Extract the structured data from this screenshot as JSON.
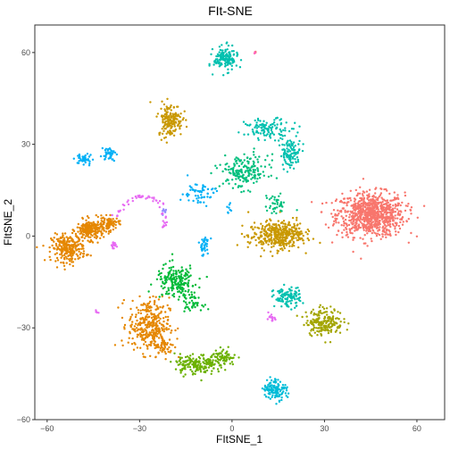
{
  "chart_data": {
    "type": "scatter",
    "title": "FIt-SNE",
    "xlabel": "FItSNE_1",
    "ylabel": "FItSNE_2",
    "xlim": [
      -64,
      69
    ],
    "ylim": [
      -60,
      69
    ],
    "xticks": [
      -60,
      -30,
      0,
      30,
      60
    ],
    "yticks": [
      -60,
      -30,
      0,
      30,
      60
    ],
    "grid": false,
    "legend": "none",
    "clusters": [
      {
        "color": "#F8766D",
        "center": [
          45,
          7
        ],
        "spread": [
          10,
          6.5
        ],
        "n": 850
      },
      {
        "color": "#F8766D",
        "center": [
          7.5,
          60
        ],
        "spread": [
          0.6,
          0.4
        ],
        "n": 3
      },
      {
        "color": "#E58700",
        "center": [
          -53,
          -4
        ],
        "spread": [
          5,
          4
        ],
        "n": 260
      },
      {
        "color": "#E58700",
        "center": [
          -46,
          2
        ],
        "spread": [
          4,
          3
        ],
        "n": 220
      },
      {
        "color": "#E58700",
        "center": [
          -40,
          4
        ],
        "spread": [
          3,
          2
        ],
        "n": 80
      },
      {
        "color": "#E58700",
        "center": [
          -27,
          -29
        ],
        "spread": [
          6,
          8
        ],
        "n": 320
      },
      {
        "color": "#E58700",
        "center": [
          -22,
          -36
        ],
        "spread": [
          3,
          3
        ],
        "n": 60
      },
      {
        "color": "#C99800",
        "center": [
          -20,
          38
        ],
        "spread": [
          3.5,
          5
        ],
        "n": 170
      },
      {
        "color": "#C99800",
        "center": [
          14,
          0
        ],
        "spread": [
          8,
          4
        ],
        "n": 330
      },
      {
        "color": "#C99800",
        "center": [
          18,
          2
        ],
        "spread": [
          5,
          3
        ],
        "n": 80
      },
      {
        "color": "#A3A500",
        "center": [
          30,
          -28
        ],
        "spread": [
          5.5,
          4
        ],
        "n": 200
      },
      {
        "color": "#6BB100",
        "center": [
          -12,
          -42
        ],
        "spread": [
          6,
          3
        ],
        "n": 160
      },
      {
        "color": "#6BB100",
        "center": [
          -3,
          -40
        ],
        "spread": [
          4,
          2.5
        ],
        "n": 90
      },
      {
        "color": "#00BA38",
        "center": [
          -18,
          -15
        ],
        "spread": [
          6,
          5
        ],
        "n": 200
      },
      {
        "color": "#00BA38",
        "center": [
          -13,
          -22
        ],
        "spread": [
          3,
          2
        ],
        "n": 40
      },
      {
        "color": "#00BF7D",
        "center": [
          4,
          21
        ],
        "spread": [
          7,
          5
        ],
        "n": 190
      },
      {
        "color": "#00BF7D",
        "center": [
          14,
          10
        ],
        "spread": [
          3,
          3
        ],
        "n": 40
      },
      {
        "color": "#00C0AF",
        "center": [
          -2,
          58
        ],
        "spread": [
          3.5,
          3.5
        ],
        "n": 150
      },
      {
        "color": "#00C0AF",
        "center": [
          18,
          -20
        ],
        "spread": [
          4,
          3
        ],
        "n": 110
      },
      {
        "color": "#00C0AF",
        "center": [
          12,
          35
        ],
        "spread": [
          7,
          3
        ],
        "n": 120
      },
      {
        "color": "#00C0AF",
        "center": [
          19,
          27
        ],
        "spread": [
          3,
          4
        ],
        "n": 100
      },
      {
        "color": "#00BCD8",
        "center": [
          14,
          -50
        ],
        "spread": [
          3.5,
          3
        ],
        "n": 130
      },
      {
        "color": "#00B0F6",
        "center": [
          -48,
          25
        ],
        "spread": [
          2.5,
          1.8
        ],
        "n": 40
      },
      {
        "color": "#00B0F6",
        "center": [
          -40,
          27
        ],
        "spread": [
          2,
          2
        ],
        "n": 40
      },
      {
        "color": "#00B0F6",
        "center": [
          -11,
          14
        ],
        "spread": [
          5,
          3.5
        ],
        "n": 60
      },
      {
        "color": "#00B0F6",
        "center": [
          -9,
          -3
        ],
        "spread": [
          1.6,
          3
        ],
        "n": 35
      },
      {
        "color": "#00B0F6",
        "center": [
          -1,
          9
        ],
        "spread": [
          1,
          1.5
        ],
        "n": 8
      },
      {
        "color": "#9590FF",
        "center": [
          -22,
          8
        ],
        "spread": [
          0.8,
          1.5
        ],
        "n": 10
      },
      {
        "color": "#E76BF3",
        "center": [
          -39,
          -3
        ],
        "spread": [
          1.5,
          0.8
        ],
        "n": 18
      },
      {
        "color": "#E76BF3",
        "center": [
          13,
          -27
        ],
        "spread": [
          1.5,
          1.3
        ],
        "n": 18
      },
      {
        "color": "#E76BF3",
        "center": [
          -44,
          -25
        ],
        "spread": [
          0.6,
          0.5
        ],
        "n": 5
      },
      {
        "color": "#FF62BC",
        "center": [
          7.5,
          60
        ],
        "spread": [
          0.4,
          0.3
        ],
        "n": 2
      }
    ],
    "arc": {
      "color": "#E76BF3",
      "points": [
        [
          -38,
          6
        ],
        [
          -34,
          11
        ],
        [
          -30,
          13
        ],
        [
          -26,
          12
        ],
        [
          -23,
          11
        ],
        [
          -22,
          6
        ],
        [
          -22,
          3
        ]
      ],
      "n": 60
    }
  }
}
